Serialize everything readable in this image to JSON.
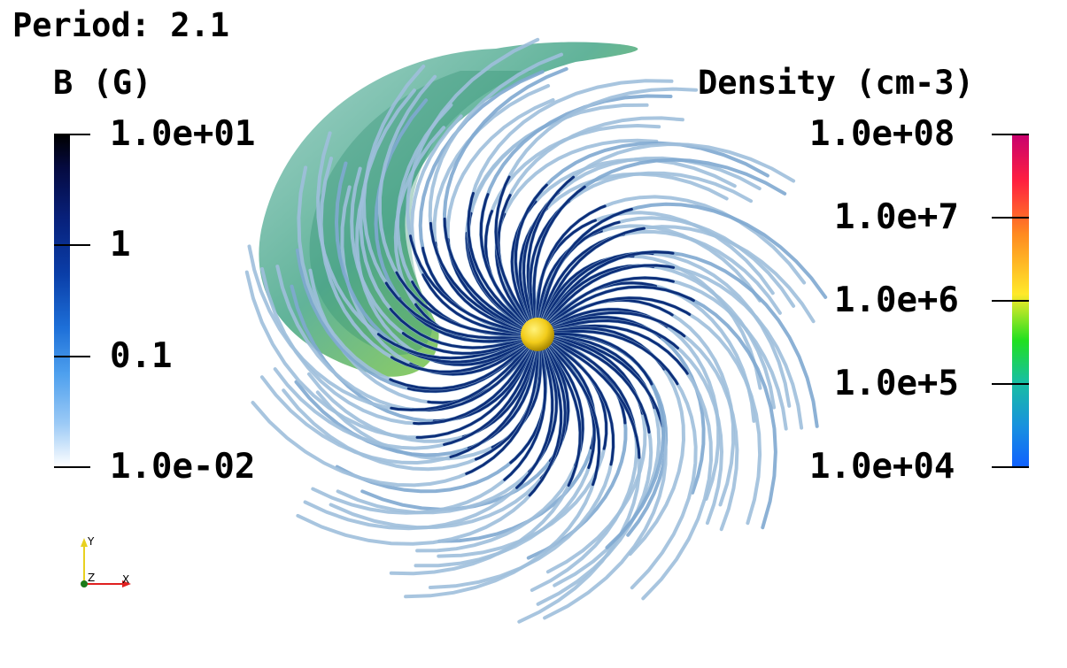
{
  "period_label": "Period: 2.1",
  "b_legend": {
    "title": "B (G)",
    "ticks": [
      "1.0e+01",
      "1",
      "0.1",
      "1.0e-02"
    ],
    "colors": [
      "#000000",
      "#08207a",
      "#1d6fd8",
      "#ffffff"
    ]
  },
  "density_legend": {
    "title": "Density (cm-3)",
    "ticks": [
      "1.0e+08",
      "1.0e+7",
      "1.0e+6",
      "1.0e+5",
      "1.0e+04"
    ],
    "colors": [
      "#c8006e",
      "#ff2040",
      "#ff8a20",
      "#ffe92a",
      "#20e020",
      "#18c0a0",
      "#1060ff"
    ]
  },
  "axes": {
    "y_label": "Y",
    "z_label": "Z",
    "x_label": "X"
  },
  "scene": {
    "star_color": "#f2cc1a",
    "field_line_color": "#1a4a9a"
  }
}
